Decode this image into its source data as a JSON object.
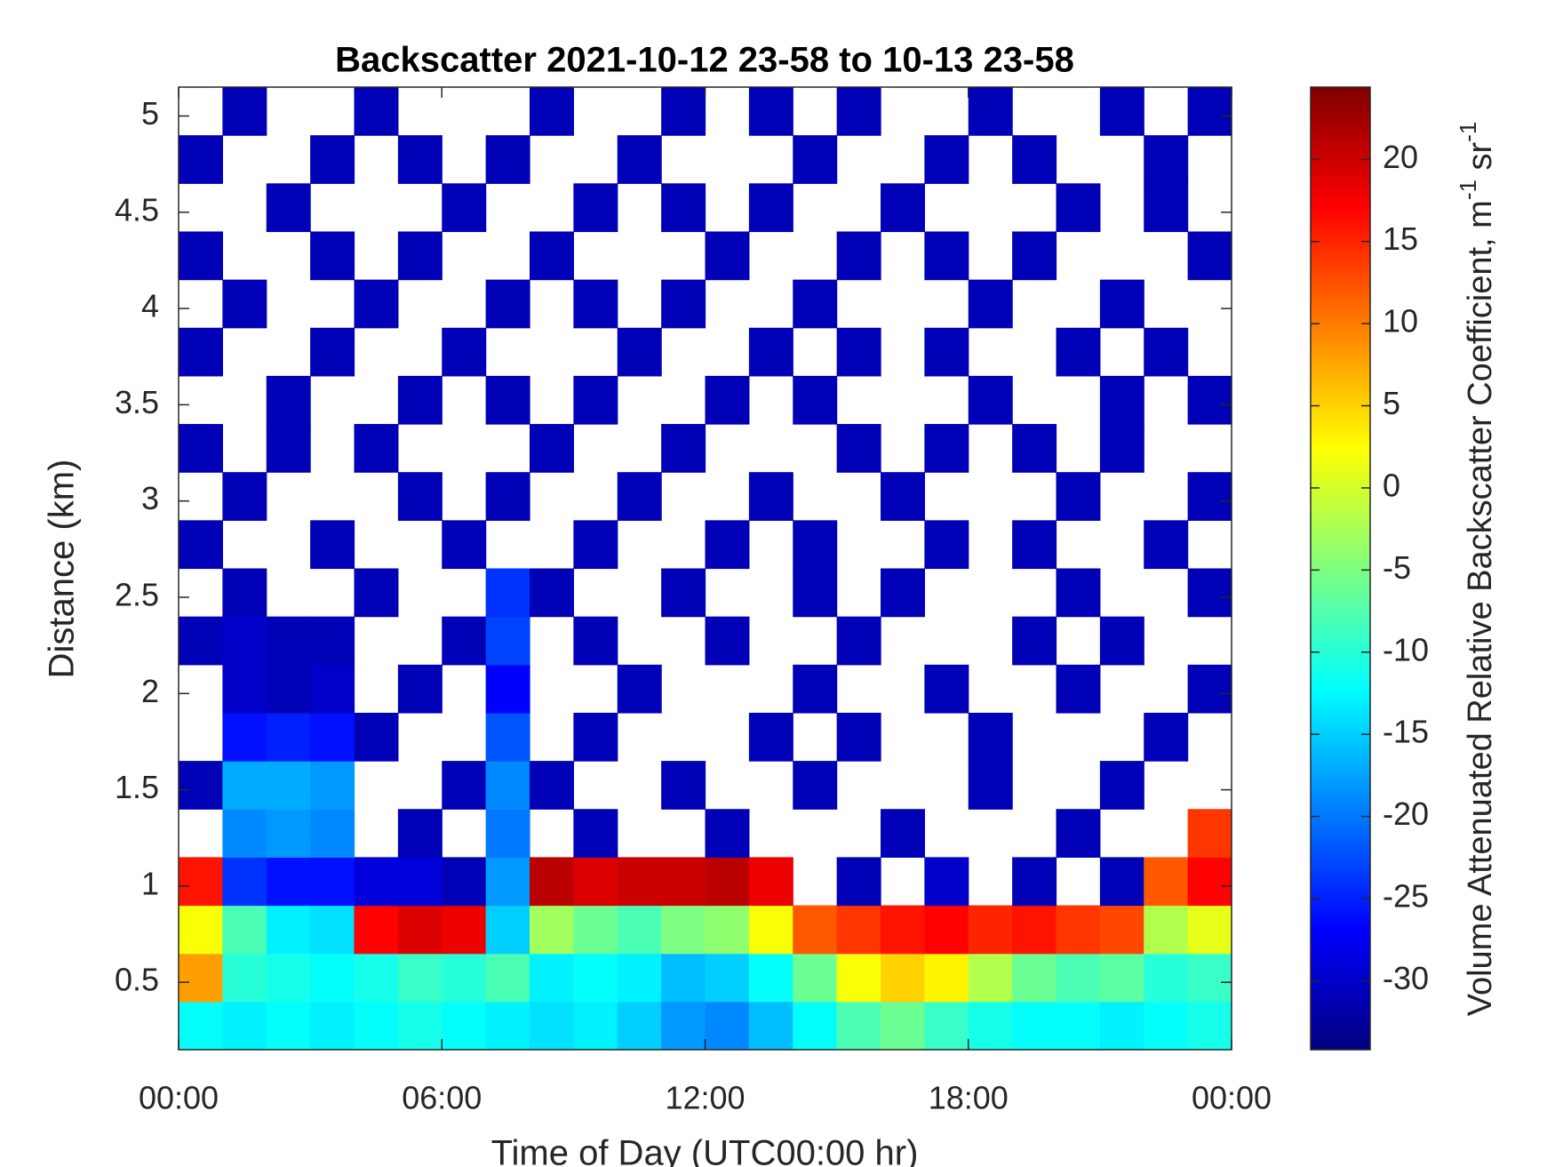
{
  "chart_data": {
    "type": "heatmap",
    "title": "Backscatter 2021-10-12 23-58 to 10-13 23-58",
    "x_label": "Time of Day (UTC00:00 hr)",
    "y_label": "Distance (km)",
    "colorbar_label": [
      "Volume Attenuated Relative Backscatter Coefficient, m",
      "-1",
      " sr",
      "-1"
    ],
    "colormap": "jet",
    "xlim": [
      0,
      24
    ],
    "xticks": [
      {
        "value": 0,
        "label": "00:00"
      },
      {
        "value": 6,
        "label": "06:00"
      },
      {
        "value": 12,
        "label": "12:00"
      },
      {
        "value": 18,
        "label": "18:00"
      },
      {
        "value": 24,
        "label": "00:00"
      }
    ],
    "ylim": [
      0.15,
      5.15
    ],
    "yticks": [
      0.5,
      1,
      1.5,
      2,
      2.5,
      3,
      3.5,
      4,
      4.5,
      5
    ],
    "clim": [
      -34.2,
      24.4
    ],
    "cticks": [
      -30,
      -25,
      -20,
      -15,
      -10,
      -5,
      0,
      5,
      10,
      15,
      20
    ],
    "x_edges": [
      0,
      1,
      2,
      3,
      4,
      5,
      6,
      7,
      8,
      9,
      10,
      11,
      12,
      13,
      14,
      15,
      16,
      17,
      18,
      19,
      20,
      21,
      22,
      23,
      24
    ],
    "y_edges": [
      0.15,
      0.4,
      0.65,
      0.9,
      1.15,
      1.4,
      1.65,
      1.9,
      2.15,
      2.4,
      2.65,
      2.9,
      3.15,
      3.4,
      3.65,
      3.9,
      4.15,
      4.4,
      4.65,
      4.9,
      5.15
    ],
    "z": [
      [
        -12,
        -13,
        -12,
        -13,
        -12,
        -11,
        -12,
        -13,
        -14,
        -13,
        -15,
        -18,
        -19,
        -16,
        -12,
        -8,
        -6,
        -9,
        -11,
        -12,
        -12,
        -13,
        -12,
        -11
      ],
      [
        8,
        -10,
        -11,
        -12,
        -11,
        -9,
        -10,
        -8,
        -13,
        -12,
        -13,
        -16,
        -15,
        -12,
        -6,
        2,
        5,
        3,
        -2,
        -6,
        -8,
        -7,
        -10,
        -9
      ],
      [
        2,
        -8,
        -13,
        -14,
        17,
        19,
        18,
        -15,
        -3,
        -6,
        -8,
        -5,
        -4,
        2,
        12,
        14,
        16,
        17,
        15,
        16,
        14,
        13,
        -2,
        1
      ],
      [
        16,
        -24,
        -26,
        -26,
        -29,
        -29,
        -31,
        -18,
        21,
        19,
        20,
        20,
        21,
        18,
        null,
        -31,
        null,
        -30,
        null,
        -31,
        null,
        -31,
        12,
        17
      ],
      [
        null,
        -19,
        -18,
        -19,
        null,
        -31,
        null,
        -20,
        null,
        -31,
        null,
        null,
        -31,
        null,
        null,
        null,
        -31,
        null,
        null,
        null,
        -31,
        null,
        null,
        14
      ],
      [
        -31,
        -17,
        -17,
        -18,
        null,
        null,
        -31,
        -19,
        -31,
        null,
        null,
        -31,
        null,
        null,
        -31,
        null,
        null,
        null,
        -31,
        null,
        null,
        -31,
        null,
        null
      ],
      [
        null,
        -26,
        -25,
        -26,
        -31,
        null,
        null,
        -22,
        null,
        -31,
        null,
        null,
        null,
        -31,
        null,
        -31,
        null,
        null,
        -31,
        null,
        null,
        null,
        -31,
        null
      ],
      [
        null,
        -30,
        -31,
        -30,
        null,
        -31,
        null,
        -27,
        null,
        null,
        -31,
        null,
        null,
        null,
        -31,
        null,
        null,
        -31,
        null,
        null,
        -31,
        null,
        null,
        -31
      ],
      [
        -31,
        -30,
        -31,
        -31,
        null,
        null,
        -31,
        -23,
        null,
        -31,
        null,
        null,
        -31,
        null,
        null,
        -31,
        null,
        null,
        null,
        -31,
        null,
        -31,
        null,
        null
      ],
      [
        null,
        -31,
        null,
        null,
        -31,
        null,
        null,
        -24,
        -31,
        null,
        null,
        -31,
        null,
        null,
        -31,
        null,
        -31,
        null,
        null,
        null,
        -31,
        null,
        null,
        -31
      ],
      [
        -31,
        null,
        null,
        -31,
        null,
        null,
        -31,
        null,
        null,
        -31,
        null,
        null,
        -31,
        null,
        -31,
        null,
        null,
        -31,
        null,
        -31,
        null,
        null,
        -31,
        null
      ],
      [
        null,
        -31,
        null,
        null,
        null,
        -31,
        null,
        -31,
        null,
        null,
        -31,
        null,
        null,
        -31,
        null,
        null,
        -31,
        null,
        null,
        null,
        -31,
        null,
        null,
        -31
      ],
      [
        -31,
        null,
        -31,
        null,
        -31,
        null,
        null,
        null,
        -31,
        null,
        null,
        -31,
        null,
        null,
        null,
        -31,
        null,
        -31,
        null,
        -31,
        null,
        -31,
        null,
        null
      ],
      [
        null,
        null,
        -31,
        null,
        null,
        -31,
        null,
        -31,
        null,
        -31,
        null,
        null,
        -31,
        null,
        -31,
        null,
        null,
        null,
        -31,
        null,
        null,
        -31,
        null,
        -31
      ],
      [
        -31,
        null,
        null,
        -31,
        null,
        null,
        -31,
        null,
        null,
        null,
        -31,
        null,
        null,
        -31,
        null,
        -31,
        null,
        -31,
        null,
        null,
        -31,
        null,
        -31,
        null
      ],
      [
        null,
        -31,
        null,
        null,
        -31,
        null,
        null,
        -31,
        null,
        -31,
        null,
        -31,
        null,
        null,
        -31,
        null,
        null,
        null,
        -31,
        null,
        null,
        -31,
        null,
        null
      ],
      [
        -31,
        null,
        null,
        -31,
        null,
        -31,
        null,
        null,
        -31,
        null,
        null,
        null,
        -31,
        null,
        null,
        -31,
        null,
        -31,
        null,
        -31,
        null,
        null,
        null,
        -31
      ],
      [
        null,
        null,
        -31,
        null,
        null,
        null,
        -31,
        null,
        null,
        -31,
        null,
        -31,
        null,
        -31,
        null,
        null,
        -31,
        null,
        null,
        null,
        -31,
        null,
        -31,
        null
      ],
      [
        -31,
        null,
        null,
        -31,
        null,
        -31,
        null,
        -31,
        null,
        null,
        -31,
        null,
        null,
        null,
        -31,
        null,
        null,
        -31,
        null,
        -31,
        null,
        null,
        -31,
        null
      ],
      [
        null,
        -31,
        null,
        null,
        -31,
        null,
        null,
        null,
        -31,
        null,
        null,
        -31,
        null,
        -31,
        null,
        -31,
        null,
        null,
        -31,
        null,
        null,
        -31,
        null,
        -31
      ]
    ]
  }
}
